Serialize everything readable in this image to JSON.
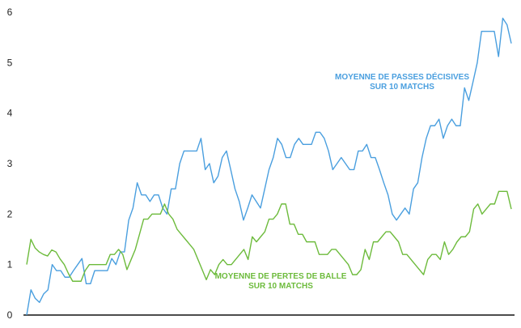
{
  "chart_data": {
    "type": "line",
    "ylim": [
      0,
      6
    ],
    "yticks": [
      "0",
      "1",
      "2",
      "3",
      "4",
      "5",
      "6"
    ],
    "grid": false,
    "series": [
      {
        "name_lines": [
          "MOYENNE DE PASSES DÉCISIVES",
          "SUR 10 MATCHS"
        ],
        "color": "#4a9fdf",
        "values": [
          0,
          0.5,
          0.33,
          0.25,
          0.42,
          0.5,
          1.0,
          0.88,
          0.88,
          0.75,
          0.75,
          0.88,
          1.0,
          1.12,
          0.62,
          0.62,
          0.88,
          0.88,
          0.88,
          0.88,
          1.12,
          1.0,
          1.25,
          1.25,
          1.88,
          2.12,
          2.62,
          2.38,
          2.38,
          2.25,
          2.38,
          2.38,
          2.12,
          2.0,
          2.5,
          2.5,
          3.0,
          3.25,
          3.25,
          3.25,
          3.25,
          3.5,
          2.88,
          3.0,
          2.62,
          2.75,
          3.12,
          3.25,
          2.88,
          2.5,
          2.25,
          1.88,
          2.12,
          2.38,
          2.25,
          2.12,
          2.5,
          2.88,
          3.12,
          3.5,
          3.38,
          3.12,
          3.12,
          3.38,
          3.5,
          3.38,
          3.38,
          3.38,
          3.62,
          3.62,
          3.5,
          3.25,
          2.88,
          3.0,
          3.12,
          3.0,
          2.88,
          2.88,
          3.25,
          3.25,
          3.38,
          3.12,
          3.12,
          2.88,
          2.62,
          2.38,
          2.0,
          1.88,
          2.0,
          2.12,
          2.0,
          2.5,
          2.62,
          3.12,
          3.5,
          3.75,
          3.75,
          3.88,
          3.5,
          3.75,
          3.88,
          3.75,
          3.75,
          4.5,
          4.25,
          4.62,
          5.0,
          5.62,
          5.62,
          5.62,
          5.62,
          5.12,
          5.88,
          5.75,
          5.38
        ]
      },
      {
        "name_lines": [
          "MOYENNE DE PERTES DE BALLE",
          "SUR 10 MATCHS"
        ],
        "color": "#6dbb3c",
        "values": [
          1.0,
          1.5,
          1.33,
          1.25,
          1.2,
          1.17,
          1.29,
          1.25,
          1.11,
          1.0,
          0.82,
          0.67,
          0.67,
          0.67,
          0.88,
          1.0,
          1.0,
          1.0,
          1.0,
          1.0,
          1.2,
          1.2,
          1.3,
          1.2,
          0.9,
          1.1,
          1.3,
          1.6,
          1.9,
          1.9,
          2.0,
          2.0,
          2.0,
          2.2,
          2.0,
          1.9,
          1.7,
          1.6,
          1.5,
          1.4,
          1.3,
          1.1,
          0.9,
          0.7,
          0.9,
          0.8,
          1.0,
          1.1,
          1.0,
          1.0,
          1.1,
          1.2,
          1.3,
          1.1,
          1.55,
          1.45,
          1.55,
          1.65,
          1.9,
          1.9,
          2.0,
          2.2,
          2.2,
          1.8,
          1.8,
          1.6,
          1.6,
          1.45,
          1.45,
          1.45,
          1.2,
          1.2,
          1.2,
          1.3,
          1.3,
          1.2,
          1.1,
          1.0,
          0.8,
          0.8,
          0.9,
          1.3,
          1.1,
          1.45,
          1.45,
          1.55,
          1.65,
          1.65,
          1.55,
          1.45,
          1.2,
          1.2,
          1.1,
          1.0,
          0.9,
          0.8,
          1.1,
          1.2,
          1.2,
          1.1,
          1.45,
          1.2,
          1.3,
          1.45,
          1.55,
          1.55,
          1.65,
          2.1,
          2.2,
          2.0,
          2.1,
          2.2,
          2.2,
          2.45,
          2.45,
          2.45,
          2.1
        ]
      }
    ]
  }
}
